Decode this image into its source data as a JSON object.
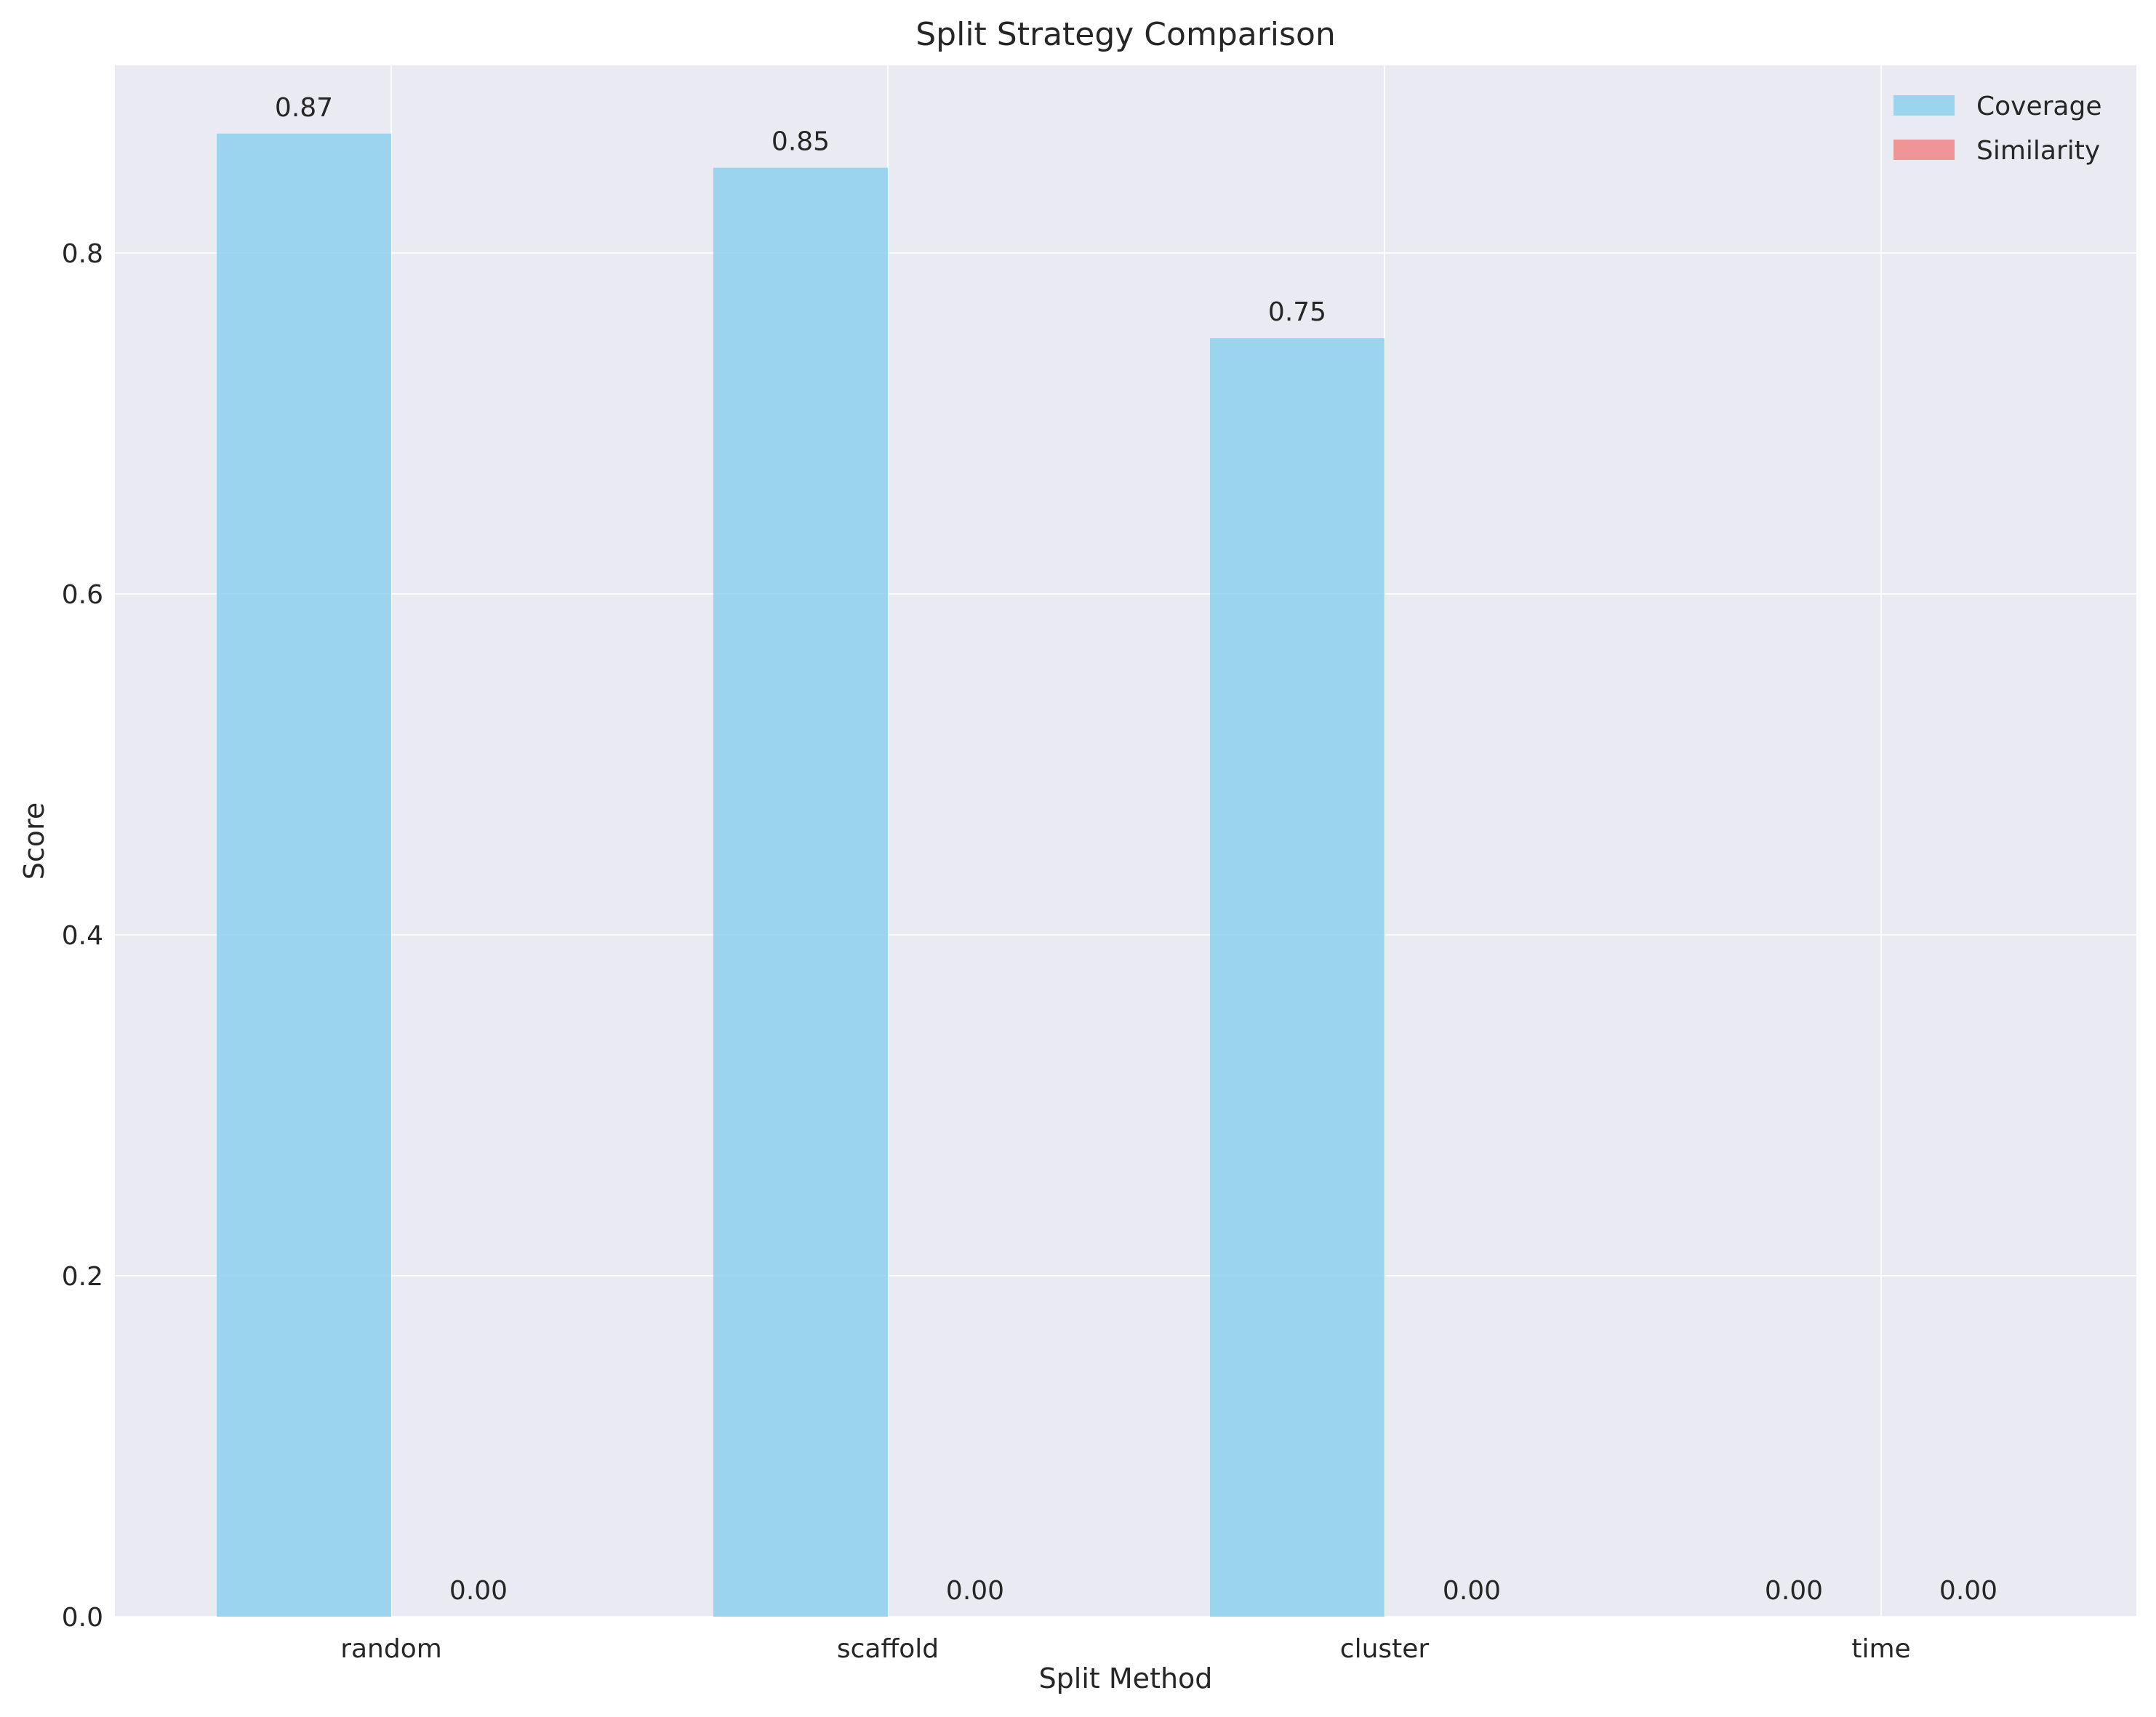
{
  "chart_data": {
    "type": "bar",
    "title": "Split Strategy Comparison",
    "xlabel": "Split Method",
    "ylabel": "Score",
    "categories": [
      "random",
      "scaffold",
      "cluster",
      "time"
    ],
    "series": [
      {
        "name": "Coverage",
        "values": [
          0.87,
          0.85,
          0.75,
          0.0
        ],
        "labels": [
          "0.87",
          "0.85",
          "0.75",
          "0.00"
        ],
        "color": "#87CEEB"
      },
      {
        "name": "Similarity",
        "values": [
          0.0,
          0.0,
          0.0,
          0.0
        ],
        "labels": [
          "0.00",
          "0.00",
          "0.00",
          "0.00"
        ],
        "color": "#F08080"
      }
    ],
    "ylim": [
      0,
      0.91
    ],
    "yticks": [
      0.0,
      0.2,
      0.4,
      0.6,
      0.8
    ],
    "ytick_labels": [
      "0.0",
      "0.2",
      "0.4",
      "0.6",
      "0.8"
    ],
    "grid": true,
    "legend_position": "top-right",
    "background_color": "#EAEAF2"
  }
}
